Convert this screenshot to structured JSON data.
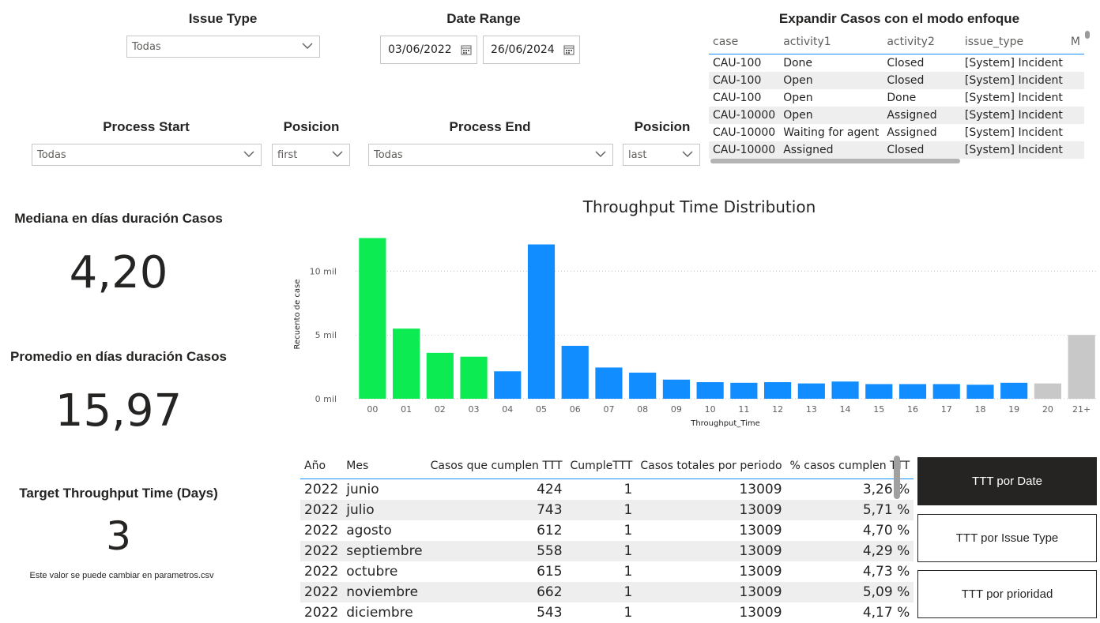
{
  "filters": {
    "issue_type": {
      "title": "Issue Type",
      "value": "Todas"
    },
    "date_range": {
      "title": "Date Range",
      "start": "03/06/2022",
      "end": "26/06/2024"
    },
    "process_start": {
      "title": "Process Start",
      "value": "Todas"
    },
    "posicion_start": {
      "title": "Posicion",
      "value": "first"
    },
    "process_end": {
      "title": "Process End",
      "value": "Todas"
    },
    "posicion_end": {
      "title": "Posicion",
      "value": "last"
    }
  },
  "cases_table": {
    "title": "Expandir Casos con el modo enfoque",
    "columns": [
      "case",
      "activity1",
      "activity2",
      "issue_type",
      "M"
    ],
    "rows": [
      [
        "CAU-100",
        "Done",
        "Closed",
        "[System] Incident"
      ],
      [
        "CAU-100",
        "Open",
        "Closed",
        "[System] Incident"
      ],
      [
        "CAU-100",
        "Open",
        "Done",
        "[System] Incident"
      ],
      [
        "CAU-10000",
        "Open",
        "Assigned",
        "[System] Incident"
      ],
      [
        "CAU-10000",
        "Waiting for agent",
        "Assigned",
        "[System] Incident"
      ],
      [
        "CAU-10000",
        "Assigned",
        "Closed",
        "[System] Incident"
      ]
    ]
  },
  "kpis": {
    "median": {
      "title": "Mediana en días duración Casos",
      "value": "4,20"
    },
    "mean": {
      "title": "Promedio en días duración Casos",
      "value": "15,97"
    },
    "target": {
      "title": "Target Throughput Time (Days)",
      "value": "3",
      "note": "Este valor se puede cambiar en parametros.csv"
    }
  },
  "chart_data": {
    "type": "bar",
    "title": "Throughput Time Distribution",
    "xlabel": "Throughput_Time",
    "ylabel": "Recuento de case",
    "categories": [
      "00",
      "01",
      "02",
      "03",
      "04",
      "05",
      "06",
      "07",
      "08",
      "09",
      "10",
      "11",
      "12",
      "13",
      "14",
      "15",
      "16",
      "17",
      "18",
      "19",
      "20",
      "21+"
    ],
    "values": [
      12600,
      5500,
      3600,
      3300,
      2150,
      12100,
      4150,
      2450,
      2050,
      1500,
      1300,
      1250,
      1300,
      1200,
      1350,
      1150,
      1150,
      1150,
      1100,
      1250,
      1200,
      5000
    ],
    "bar_colors": [
      "#0ceb52",
      "#0ceb52",
      "#0ceb52",
      "#0ceb52",
      "#118dff",
      "#118dff",
      "#118dff",
      "#118dff",
      "#118dff",
      "#118dff",
      "#118dff",
      "#118dff",
      "#118dff",
      "#118dff",
      "#118dff",
      "#118dff",
      "#118dff",
      "#118dff",
      "#118dff",
      "#118dff",
      "#c8c8c8",
      "#c8c8c8"
    ],
    "yticks": [
      {
        "value": 0,
        "label": "0 mil"
      },
      {
        "value": 5000,
        "label": "5 mil"
      },
      {
        "value": 10000,
        "label": "10 mil"
      }
    ],
    "ylim": [
      0,
      13000
    ],
    "grid": "dotted horizontal"
  },
  "ttt_table": {
    "columns": [
      "Año",
      "Mes",
      "Casos que cumplen TTT",
      "CumpleTTT",
      "Casos totales por periodo",
      "% casos cumplen TTT"
    ],
    "rows": [
      [
        "2022",
        "junio",
        "424",
        "1",
        "13009",
        "3,26 %"
      ],
      [
        "2022",
        "julio",
        "743",
        "1",
        "13009",
        "5,71 %"
      ],
      [
        "2022",
        "agosto",
        "612",
        "1",
        "13009",
        "4,70 %"
      ],
      [
        "2022",
        "septiembre",
        "558",
        "1",
        "13009",
        "4,29 %"
      ],
      [
        "2022",
        "octubre",
        "615",
        "1",
        "13009",
        "4,73 %"
      ],
      [
        "2022",
        "noviembre",
        "662",
        "1",
        "13009",
        "5,09 %"
      ],
      [
        "2022",
        "diciembre",
        "543",
        "1",
        "13009",
        "4,17 %"
      ]
    ]
  },
  "buttons": {
    "by_date": "TTT por Date",
    "by_issue_type": "TTT por Issue Type",
    "by_priority": "TTT por prioridad"
  },
  "colors": {
    "green": "#0ceb52",
    "blue": "#118dff",
    "gray": "#c8c8c8",
    "dark": "#252423"
  }
}
